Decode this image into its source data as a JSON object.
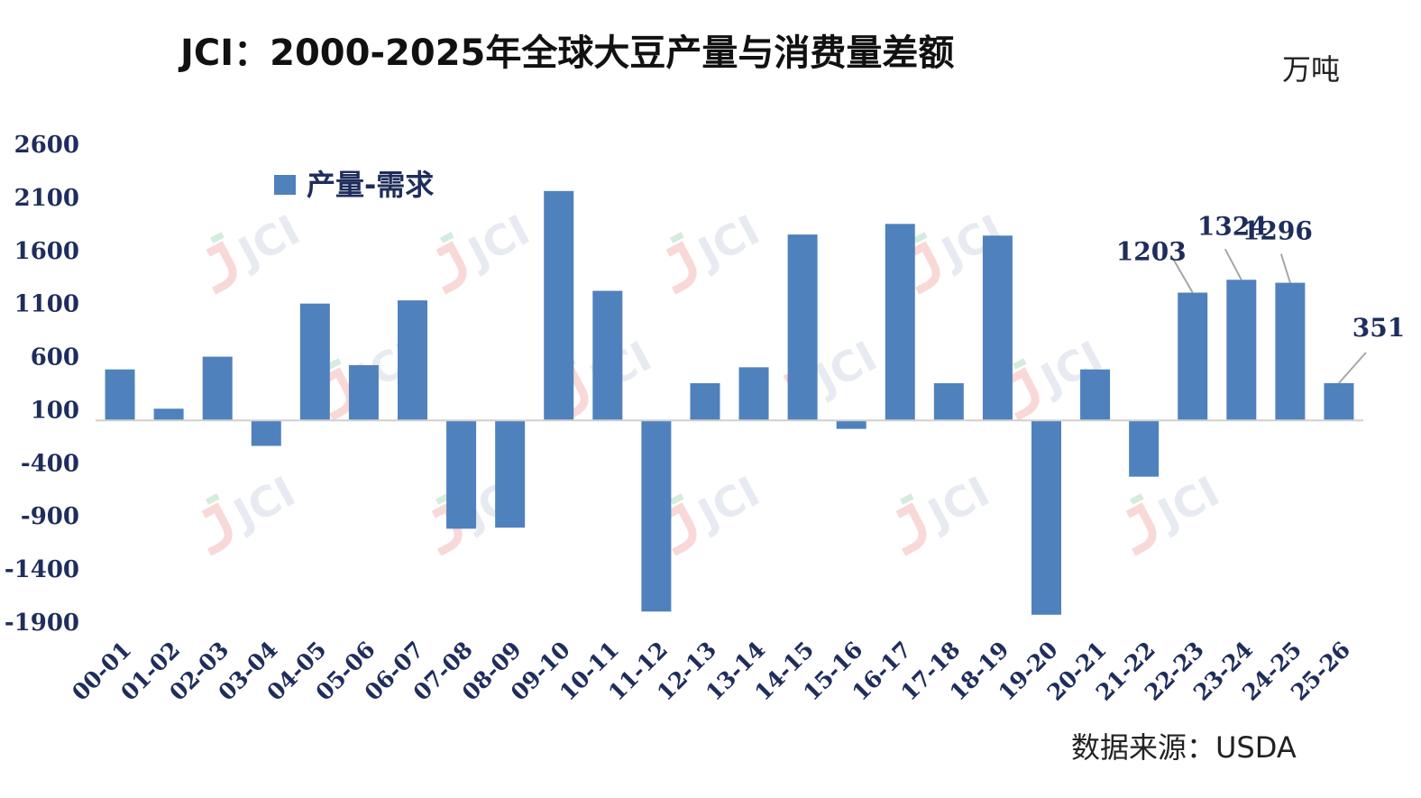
{
  "chart_data": {
    "type": "bar",
    "title": "JCI：2000-2025年全球大豆产量与消费量差额",
    "unit": "万吨",
    "source": "数据来源：USDA",
    "watermark": "JCI",
    "categories": [
      "00-01",
      "01-02",
      "02-03",
      "03-04",
      "04-05",
      "05-06",
      "06-07",
      "07-08",
      "08-09",
      "09-10",
      "10-11",
      "11-12",
      "12-13",
      "13-14",
      "14-15",
      "15-16",
      "16-17",
      "17-18",
      "18-19",
      "19-20",
      "20-21",
      "21-22",
      "22-23",
      "23-24",
      "24-25",
      "25-26"
    ],
    "series": [
      {
        "name": "产量-需求",
        "color": "#4f81bd",
        "values": [
          480,
          110,
          600,
          -240,
          1100,
          520,
          1130,
          -1020,
          -1010,
          2160,
          1220,
          -1800,
          350,
          500,
          1750,
          -80,
          1850,
          350,
          1740,
          -1830,
          480,
          -530,
          1203,
          1324,
          1296,
          351
        ]
      }
    ],
    "ylim": [
      -1900,
      2600
    ],
    "yticks": [
      2600,
      2100,
      1600,
      1100,
      600,
      100,
      -400,
      -900,
      -1400,
      -1900
    ],
    "data_labels": [
      {
        "category": "22-23",
        "text": "1203"
      },
      {
        "category": "23-24",
        "text": "1324"
      },
      {
        "category": "24-25",
        "text": "1296"
      },
      {
        "category": "25-26",
        "text": "351"
      }
    ],
    "legend_position": "top-left",
    "grid": false
  }
}
